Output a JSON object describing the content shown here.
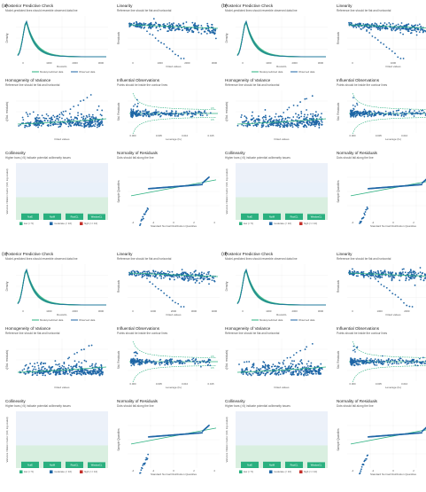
{
  "colors": {
    "green": "#2ab07f",
    "blue": "#1f66a6",
    "red": "#c4302b",
    "low_fill": "#d9efe0",
    "mod_fill": "#dfe9f5",
    "grid": "#e8e8e8",
    "axis_text": "#555555"
  },
  "panels": [
    {
      "label": "(a)",
      "rawvar": "RootsCL",
      "ppc_xticks": [
        "0",
        "1000",
        "2000",
        "3000"
      ],
      "lin_xticks": [
        "0",
        "1000",
        "2000",
        "3000"
      ],
      "variant": "a"
    },
    {
      "label": "(b)",
      "rawvar": "RootsCL",
      "ppc_xticks": [
        "0",
        "1000",
        "2000",
        "3000"
      ],
      "lin_xticks": [
        "0",
        "1000",
        "2000"
      ],
      "variant": "b"
    },
    {
      "label": "(c)",
      "rawvar": "RootsCL",
      "ppc_xticks": [
        "0",
        "1000",
        "2000",
        "3000"
      ],
      "lin_xticks": [
        "0",
        "1000",
        "2000",
        "3000",
        "4000"
      ],
      "variant": "c"
    },
    {
      "label": "(d)",
      "rawvar": "RootsCL",
      "ppc_xticks": [
        "0",
        "1000",
        "2000",
        "3000"
      ],
      "lin_xticks": [
        "0",
        "1000",
        "2000",
        "3000"
      ],
      "variant": "d"
    }
  ],
  "subplots": {
    "ppc": {
      "title": "Posterior Predictive Check",
      "subtitle": "Model-predicted lines should resemble observed data line",
      "ylabel": "Density",
      "legend": [
        "Model-predicted data",
        "Observed data"
      ]
    },
    "linearity": {
      "title": "Linearity",
      "subtitle": "Reference line should be flat and horizontal",
      "ylabel": "Residuals",
      "xlabel": "Fitted values"
    },
    "homog": {
      "title": "Homogeneity of Variance",
      "subtitle": "Reference line should be flat and horizontal",
      "ylabel": "√|Std. residuals|",
      "xlabel": "Fitted values"
    },
    "influence": {
      "title": "Influential Observations",
      "subtitle": "Points should be inside the contour lines",
      "ylabel": "Std. Residuals",
      "xlabel": "Leverage (hᵢᵢ)",
      "xticks": [
        "0.000",
        "0.005",
        "0.010",
        "0.015"
      ],
      "contour_label": "0.5"
    },
    "collin": {
      "title": "Collinearity",
      "subtitle": "Higher bars (>5) indicate potential collinearity issues",
      "ylabel": "Variance Inflation Factor (VIF, log-scaled)",
      "bars": [
        "NutE",
        "NutM",
        "RootCL",
        "WindowCL"
      ],
      "legend": [
        "low (< 5)",
        "moderate (< 10)",
        "high (>= 10)"
      ]
    },
    "normality": {
      "title": "Normality of Residuals",
      "subtitle": "Dots should fall along the line",
      "ylabel": "Sample Quantiles",
      "xlabel": "Standard Normal Distribution Quantiles",
      "xticks": [
        "-4",
        "-2",
        "0",
        "2",
        "4"
      ]
    }
  },
  "chart_data": {
    "type": "scatter",
    "description_panels": [
      "(a)",
      "(b)",
      "(c)",
      "(d)"
    ],
    "ppc_density_peak_x": 300,
    "vif_values": {
      "NutE": 1.2,
      "NutM": 1.2,
      "RootCL": 1.2,
      "WindowCL": 1.1
    },
    "vif_thresholds": [
      5,
      10
    ]
  }
}
